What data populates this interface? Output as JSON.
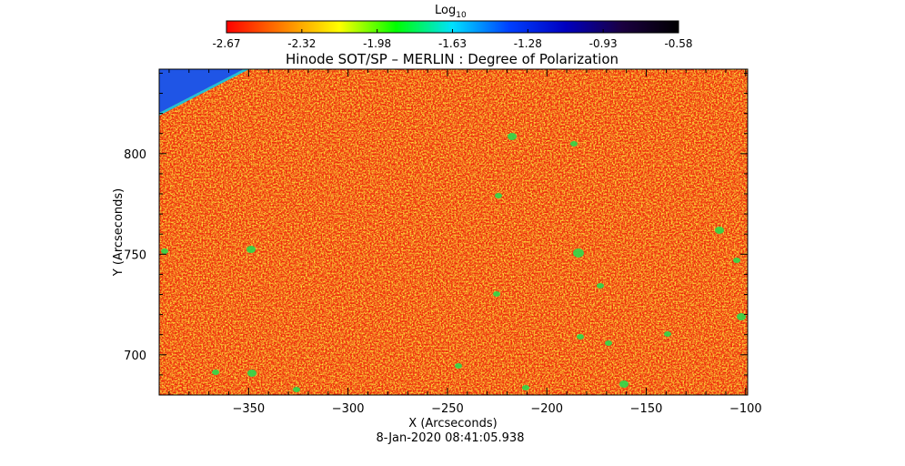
{
  "colorbar": {
    "label_main": "Log",
    "label_sub": "10",
    "ticks": [
      "-2.67",
      "-2.32",
      "-1.98",
      "-1.63",
      "-1.28",
      "-0.93",
      "-0.58"
    ],
    "stops": [
      "#ff0000",
      "#ff8000",
      "#ffff00",
      "#00ff00",
      "#00e0ff",
      "#0040ff",
      "#0000c0",
      "#1a0040",
      "#000000"
    ]
  },
  "chart_data": {
    "type": "heatmap",
    "title": "Hinode SOT/SP – MERLIN : Degree of Polarization",
    "xlabel": "X (Arcseconds)",
    "ylabel": "Y (Arcseconds)",
    "xlim": [
      -395,
      -99
    ],
    "ylim": [
      680,
      842
    ],
    "xticks": [
      -350,
      -300,
      -250,
      -200,
      -150,
      -100
    ],
    "yticks": [
      700,
      750,
      800
    ],
    "color_scale": {
      "label": "Log10",
      "min": -2.67,
      "max": -0.58
    },
    "dominant_value": -2.67,
    "blue_corner": "top-left",
    "timestamp": "8-Jan-2020 08:41:05.938"
  }
}
